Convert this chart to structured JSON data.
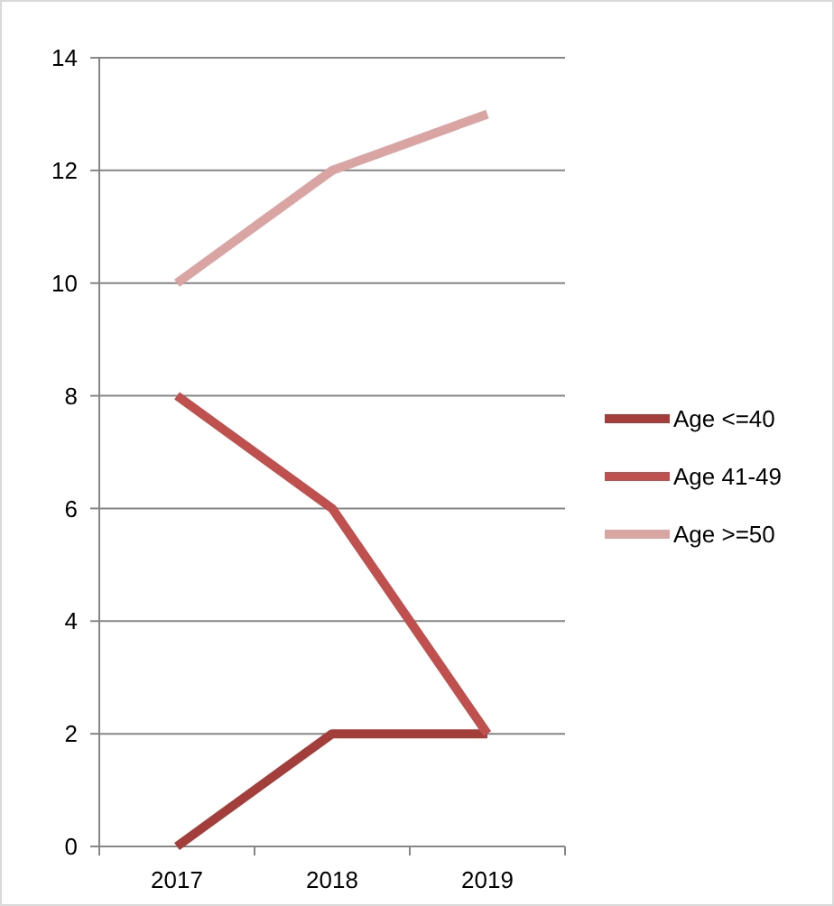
{
  "chart_data": {
    "type": "line",
    "categories": [
      "2017",
      "2018",
      "2019"
    ],
    "series": [
      {
        "name": "Age <=40",
        "color": "#a33e3a",
        "values": [
          0,
          2,
          2
        ]
      },
      {
        "name": "Age 41-49",
        "color": "#c0504d",
        "values": [
          8,
          6,
          2
        ]
      },
      {
        "name": "Age >=50",
        "color": "#d9a4a2",
        "values": [
          10,
          12,
          13
        ]
      }
    ],
    "ylim": [
      0,
      14
    ],
    "yticks": [
      0,
      2,
      4,
      6,
      8,
      10,
      12,
      14
    ],
    "grid": "y",
    "legend": "right",
    "marker": "none",
    "line_style": "solid"
  }
}
